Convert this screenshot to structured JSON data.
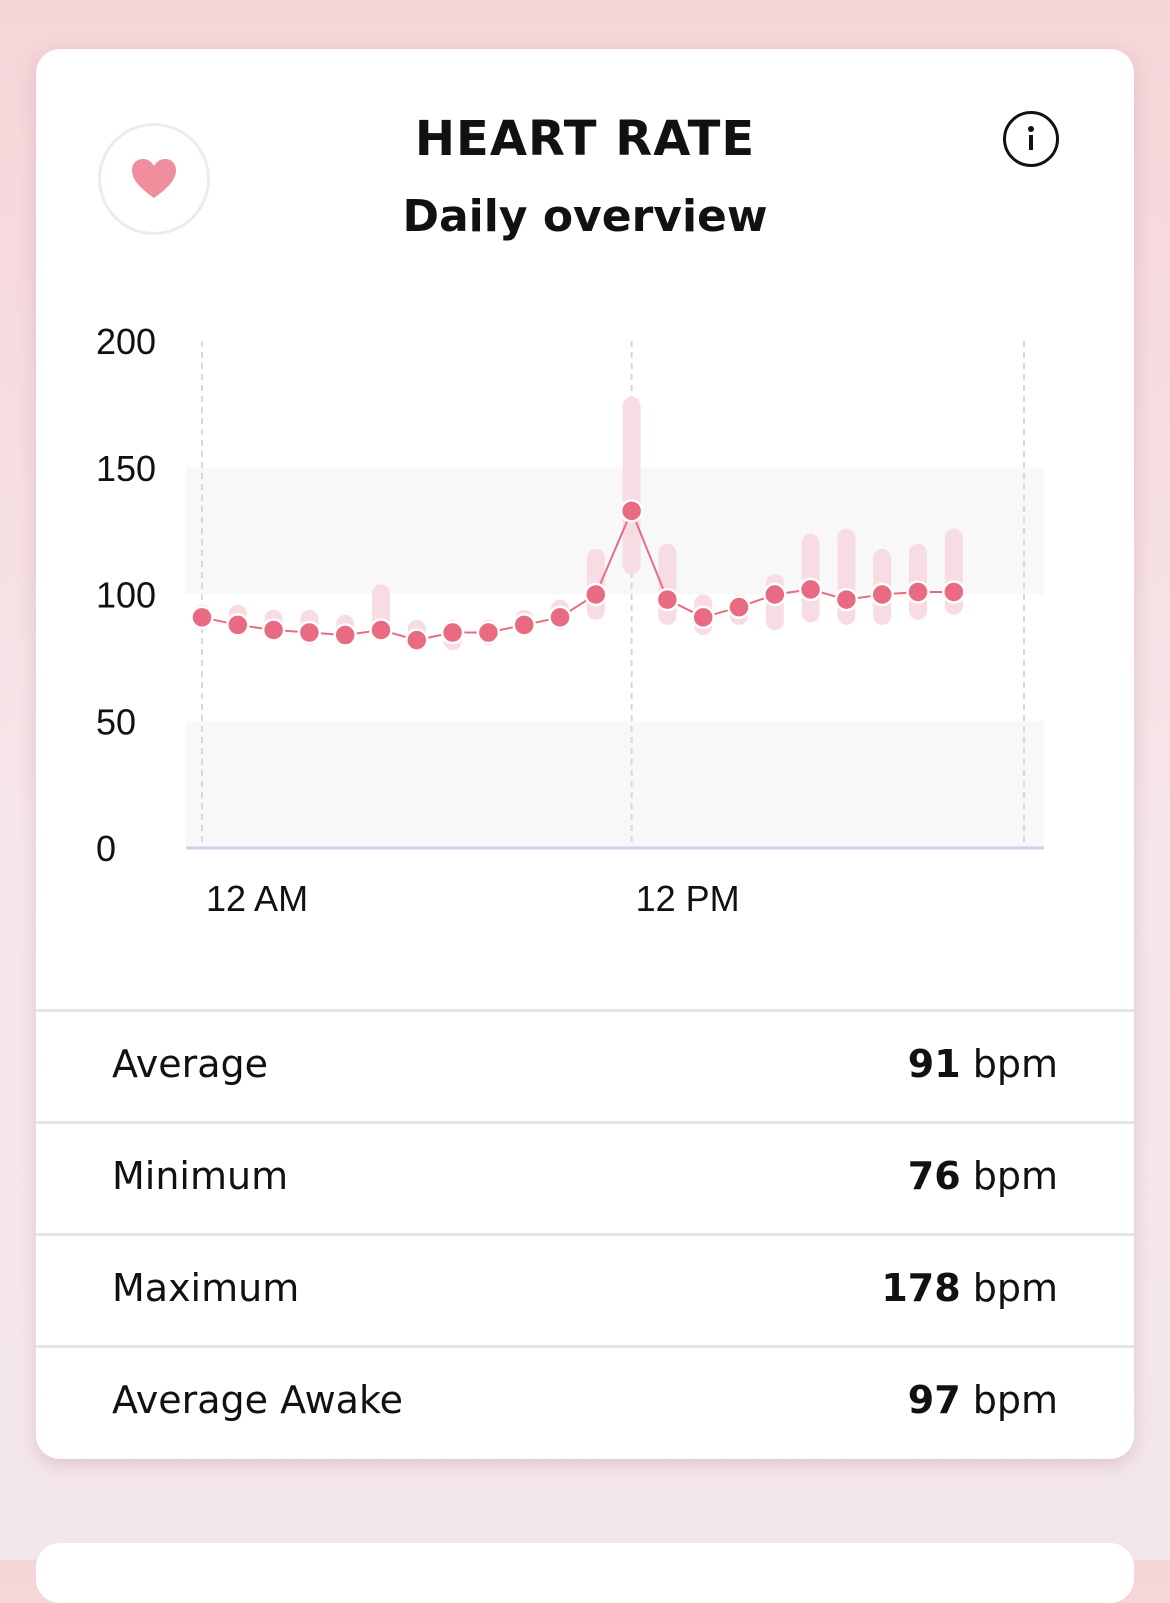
{
  "header": {
    "title": "HEART RATE",
    "subtitle": "Daily overview",
    "badge_icon": "heart-icon",
    "info_icon": "info-icon"
  },
  "colors": {
    "accent": "#e86b82",
    "accent_light": "#f7dde3",
    "heart": "#ef8f9e",
    "band": "#f8f8f9"
  },
  "chart_data": {
    "type": "line",
    "ylim": [
      0,
      200
    ],
    "y_ticks": [
      "200",
      "150",
      "100",
      "50",
      "0"
    ],
    "x_ticks": [
      "12 AM",
      "12 PM"
    ],
    "x_hours": [
      0,
      1,
      2,
      3,
      4,
      5,
      6,
      7,
      8,
      9,
      10,
      11,
      12,
      13,
      14,
      15,
      16,
      17,
      18,
      19,
      20,
      21
    ],
    "values": [
      91,
      88,
      86,
      85,
      84,
      86,
      82,
      85,
      85,
      88,
      91,
      100,
      133,
      98,
      91,
      95,
      100,
      102,
      98,
      100,
      101,
      101
    ],
    "range_min": [
      86,
      84,
      82,
      80,
      80,
      82,
      78,
      78,
      80,
      84,
      86,
      90,
      108,
      88,
      84,
      88,
      86,
      89,
      88,
      88,
      90,
      92
    ],
    "range_max": [
      96,
      96,
      94,
      94,
      92,
      104,
      90,
      90,
      90,
      94,
      98,
      118,
      178,
      120,
      100,
      100,
      108,
      124,
      126,
      118,
      120,
      126
    ],
    "normal_bands": [
      [
        100,
        150
      ],
      [
        0,
        50
      ]
    ],
    "grid": "vertical dashed at 12 AM, 12 PM, 12 AM"
  },
  "stats": [
    {
      "label": "Average",
      "value": "91",
      "unit": "bpm"
    },
    {
      "label": "Minimum",
      "value": "76",
      "unit": "bpm"
    },
    {
      "label": "Maximum",
      "value": "178",
      "unit": "bpm"
    },
    {
      "label": "Average Awake",
      "value": "97",
      "unit": "bpm"
    }
  ]
}
